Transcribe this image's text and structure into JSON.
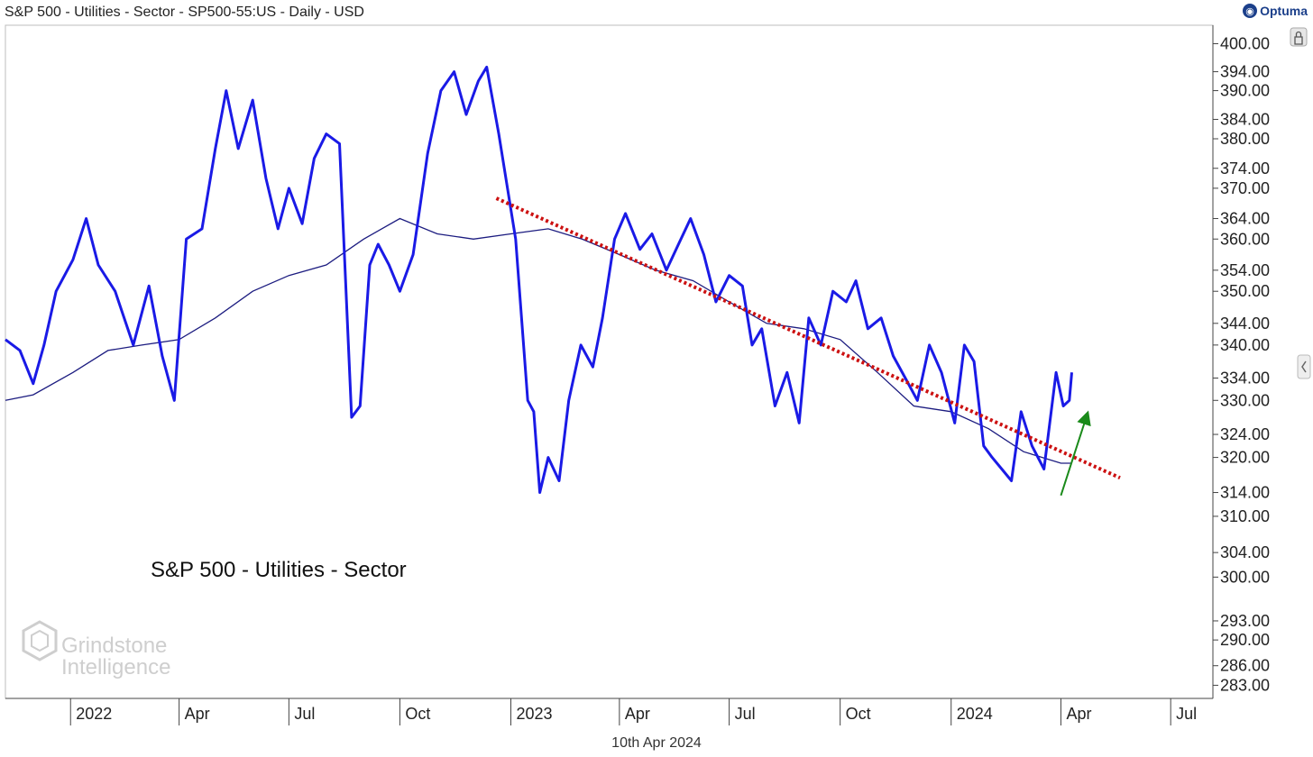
{
  "header": {
    "title": "S&P 500 - Utilities - Sector - SP500-55:US - Daily - USD",
    "brand": "Optuma"
  },
  "footer": {
    "date": "10th Apr 2024"
  },
  "watermark": {
    "line1": "Grindstone",
    "line2": "Intelligence"
  },
  "chart_data": {
    "type": "line",
    "label": "S&P 500 - Utilities - Sector",
    "y_scale": "log",
    "ylim": [
      281,
      404
    ],
    "xlim": [
      "2021-11-08",
      "2024-08-05"
    ],
    "grid": false,
    "y_ticks": [
      "283.00",
      "286.00",
      "290.00",
      "293.00",
      "300.00",
      "304.00",
      "310.00",
      "314.00",
      "320.00",
      "324.00",
      "330.00",
      "334.00",
      "340.00",
      "344.00",
      "350.00",
      "354.00",
      "360.00",
      "364.00",
      "370.00",
      "374.00",
      "380.00",
      "384.00",
      "390.00",
      "394.00",
      "400.00"
    ],
    "x_ticks": [
      {
        "label": "2022",
        "date": "2022-01-01"
      },
      {
        "label": "Apr",
        "date": "2022-04-01"
      },
      {
        "label": "Jul",
        "date": "2022-07-01"
      },
      {
        "label": "Oct",
        "date": "2022-10-01"
      },
      {
        "label": "2023",
        "date": "2023-01-01"
      },
      {
        "label": "Apr",
        "date": "2023-04-01"
      },
      {
        "label": "Jul",
        "date": "2023-07-01"
      },
      {
        "label": "Oct",
        "date": "2023-10-01"
      },
      {
        "label": "2024",
        "date": "2024-01-01"
      },
      {
        "label": "Apr",
        "date": "2024-04-01"
      },
      {
        "label": "Jul",
        "date": "2024-07-01"
      }
    ],
    "series": [
      {
        "role": "price",
        "color": "#1a1ae6",
        "points": [
          [
            "2021-11-08",
            341
          ],
          [
            "2021-11-20",
            339
          ],
          [
            "2021-12-01",
            333
          ],
          [
            "2021-12-10",
            340
          ],
          [
            "2021-12-20",
            350
          ],
          [
            "2022-01-03",
            356
          ],
          [
            "2022-01-14",
            364
          ],
          [
            "2022-01-24",
            355
          ],
          [
            "2022-02-07",
            350
          ],
          [
            "2022-02-22",
            340
          ],
          [
            "2022-03-07",
            351
          ],
          [
            "2022-03-18",
            338
          ],
          [
            "2022-03-28",
            330
          ],
          [
            "2022-04-07",
            360
          ],
          [
            "2022-04-20",
            362
          ],
          [
            "2022-05-01",
            378
          ],
          [
            "2022-05-10",
            390
          ],
          [
            "2022-05-20",
            378
          ],
          [
            "2022-06-01",
            388
          ],
          [
            "2022-06-12",
            372
          ],
          [
            "2022-06-22",
            362
          ],
          [
            "2022-07-01",
            370
          ],
          [
            "2022-07-12",
            363
          ],
          [
            "2022-07-22",
            376
          ],
          [
            "2022-08-01",
            381
          ],
          [
            "2022-08-12",
            379
          ],
          [
            "2022-08-22",
            327
          ],
          [
            "2022-08-29",
            329
          ],
          [
            "2022-09-06",
            355
          ],
          [
            "2022-09-13",
            359
          ],
          [
            "2022-09-22",
            355
          ],
          [
            "2022-10-01",
            350
          ],
          [
            "2022-10-12",
            357
          ],
          [
            "2022-10-24",
            377
          ],
          [
            "2022-11-04",
            390
          ],
          [
            "2022-11-15",
            394
          ],
          [
            "2022-11-25",
            385
          ],
          [
            "2022-12-05",
            392
          ],
          [
            "2022-12-12",
            395
          ],
          [
            "2022-12-22",
            381
          ],
          [
            "2023-01-05",
            360
          ],
          [
            "2023-01-15",
            330
          ],
          [
            "2023-01-20",
            328
          ],
          [
            "2023-01-25",
            314
          ],
          [
            "2023-02-01",
            320
          ],
          [
            "2023-02-10",
            316
          ],
          [
            "2023-02-18",
            330
          ],
          [
            "2023-02-28",
            340
          ],
          [
            "2023-03-10",
            336
          ],
          [
            "2023-03-18",
            345
          ],
          [
            "2023-03-28",
            360
          ],
          [
            "2023-04-06",
            365
          ],
          [
            "2023-04-18",
            358
          ],
          [
            "2023-04-28",
            361
          ],
          [
            "2023-05-10",
            354
          ],
          [
            "2023-05-20",
            359
          ],
          [
            "2023-05-30",
            364
          ],
          [
            "2023-06-10",
            357
          ],
          [
            "2023-06-20",
            348
          ],
          [
            "2023-07-01",
            353
          ],
          [
            "2023-07-12",
            351
          ],
          [
            "2023-07-20",
            340
          ],
          [
            "2023-07-28",
            343
          ],
          [
            "2023-08-08",
            329
          ],
          [
            "2023-08-18",
            335
          ],
          [
            "2023-08-28",
            326
          ],
          [
            "2023-09-05",
            345
          ],
          [
            "2023-09-15",
            340
          ],
          [
            "2023-09-25",
            350
          ],
          [
            "2023-10-06",
            348
          ],
          [
            "2023-10-14",
            352
          ],
          [
            "2023-10-24",
            343
          ],
          [
            "2023-11-04",
            345
          ],
          [
            "2023-11-14",
            338
          ],
          [
            "2023-11-24",
            334
          ],
          [
            "2023-12-04",
            330
          ],
          [
            "2023-12-14",
            340
          ],
          [
            "2023-12-24",
            335
          ],
          [
            "2024-01-04",
            326
          ],
          [
            "2024-01-12",
            340
          ],
          [
            "2024-01-20",
            337
          ],
          [
            "2024-01-28",
            322
          ],
          [
            "2024-02-04",
            320
          ],
          [
            "2024-02-12",
            318
          ],
          [
            "2024-02-20",
            316
          ],
          [
            "2024-02-28",
            328
          ],
          [
            "2024-03-08",
            322
          ],
          [
            "2024-03-18",
            318
          ],
          [
            "2024-03-28",
            335
          ],
          [
            "2024-04-03",
            329
          ],
          [
            "2024-04-08",
            330
          ],
          [
            "2024-04-10",
            335
          ]
        ]
      },
      {
        "role": "moving-average",
        "color": "#1c1c80",
        "points": [
          [
            "2021-11-08",
            330
          ],
          [
            "2021-12-01",
            331
          ],
          [
            "2022-01-03",
            335
          ],
          [
            "2022-02-01",
            339
          ],
          [
            "2022-03-01",
            340
          ],
          [
            "2022-04-01",
            341
          ],
          [
            "2022-05-01",
            345
          ],
          [
            "2022-06-01",
            350
          ],
          [
            "2022-07-01",
            353
          ],
          [
            "2022-08-01",
            355
          ],
          [
            "2022-09-01",
            360
          ],
          [
            "2022-10-01",
            364
          ],
          [
            "2022-11-01",
            361
          ],
          [
            "2022-12-01",
            360
          ],
          [
            "2023-01-01",
            361
          ],
          [
            "2023-02-01",
            362
          ],
          [
            "2023-03-01",
            360
          ],
          [
            "2023-04-01",
            357
          ],
          [
            "2023-05-01",
            354
          ],
          [
            "2023-06-01",
            352
          ],
          [
            "2023-07-01",
            348
          ],
          [
            "2023-08-01",
            344
          ],
          [
            "2023-09-01",
            343
          ],
          [
            "2023-10-01",
            341
          ],
          [
            "2023-11-01",
            335
          ],
          [
            "2023-12-01",
            329
          ],
          [
            "2024-01-01",
            328
          ],
          [
            "2024-02-01",
            325
          ],
          [
            "2024-03-01",
            321
          ],
          [
            "2024-04-01",
            319
          ],
          [
            "2024-04-10",
            319
          ]
        ]
      }
    ],
    "annotations": [
      {
        "type": "trendline",
        "color": "#cc1111",
        "style": "dotted",
        "from": [
          "2022-12-20",
          368
        ],
        "to": [
          "2024-05-20",
          316.5
        ]
      },
      {
        "type": "arrow",
        "color": "#1a8a1a",
        "from": [
          "2024-04-01",
          313.5
        ],
        "to": [
          "2024-04-22",
          327
        ]
      }
    ]
  }
}
